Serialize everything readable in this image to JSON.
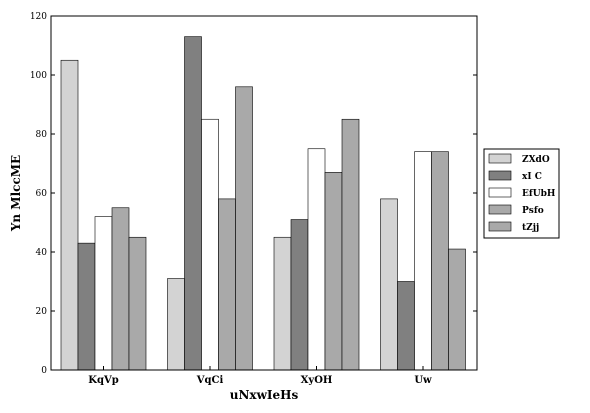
{
  "chart_data": {
    "type": "bar",
    "title": "",
    "xlabel": "uNxwIeHs",
    "ylabel": "Yn  MlccME",
    "categories": [
      "KqVp",
      "VqCi",
      "XyOH",
      "Uw"
    ],
    "series": [
      {
        "name": "ZXdO",
        "values": [
          105,
          31,
          45,
          58
        ],
        "color": "#d3d3d3"
      },
      {
        "name": "xI C",
        "values": [
          43,
          113,
          51,
          30
        ],
        "color": "#808080"
      },
      {
        "name": "EfUbH",
        "values": [
          52,
          85,
          75,
          74
        ],
        "color": "#ffffff"
      },
      {
        "name": "Psfo",
        "values": [
          55,
          58,
          67,
          74
        ],
        "color": "#a9a9a9"
      },
      {
        "name": "tZjj",
        "values": [
          45,
          96,
          85,
          41
        ],
        "color": "#a9a9a9"
      }
    ],
    "ylim": [
      0,
      120
    ],
    "yticks": [
      0,
      20,
      40,
      60,
      80,
      100,
      120
    ],
    "grid": false,
    "legend_position": "right"
  }
}
